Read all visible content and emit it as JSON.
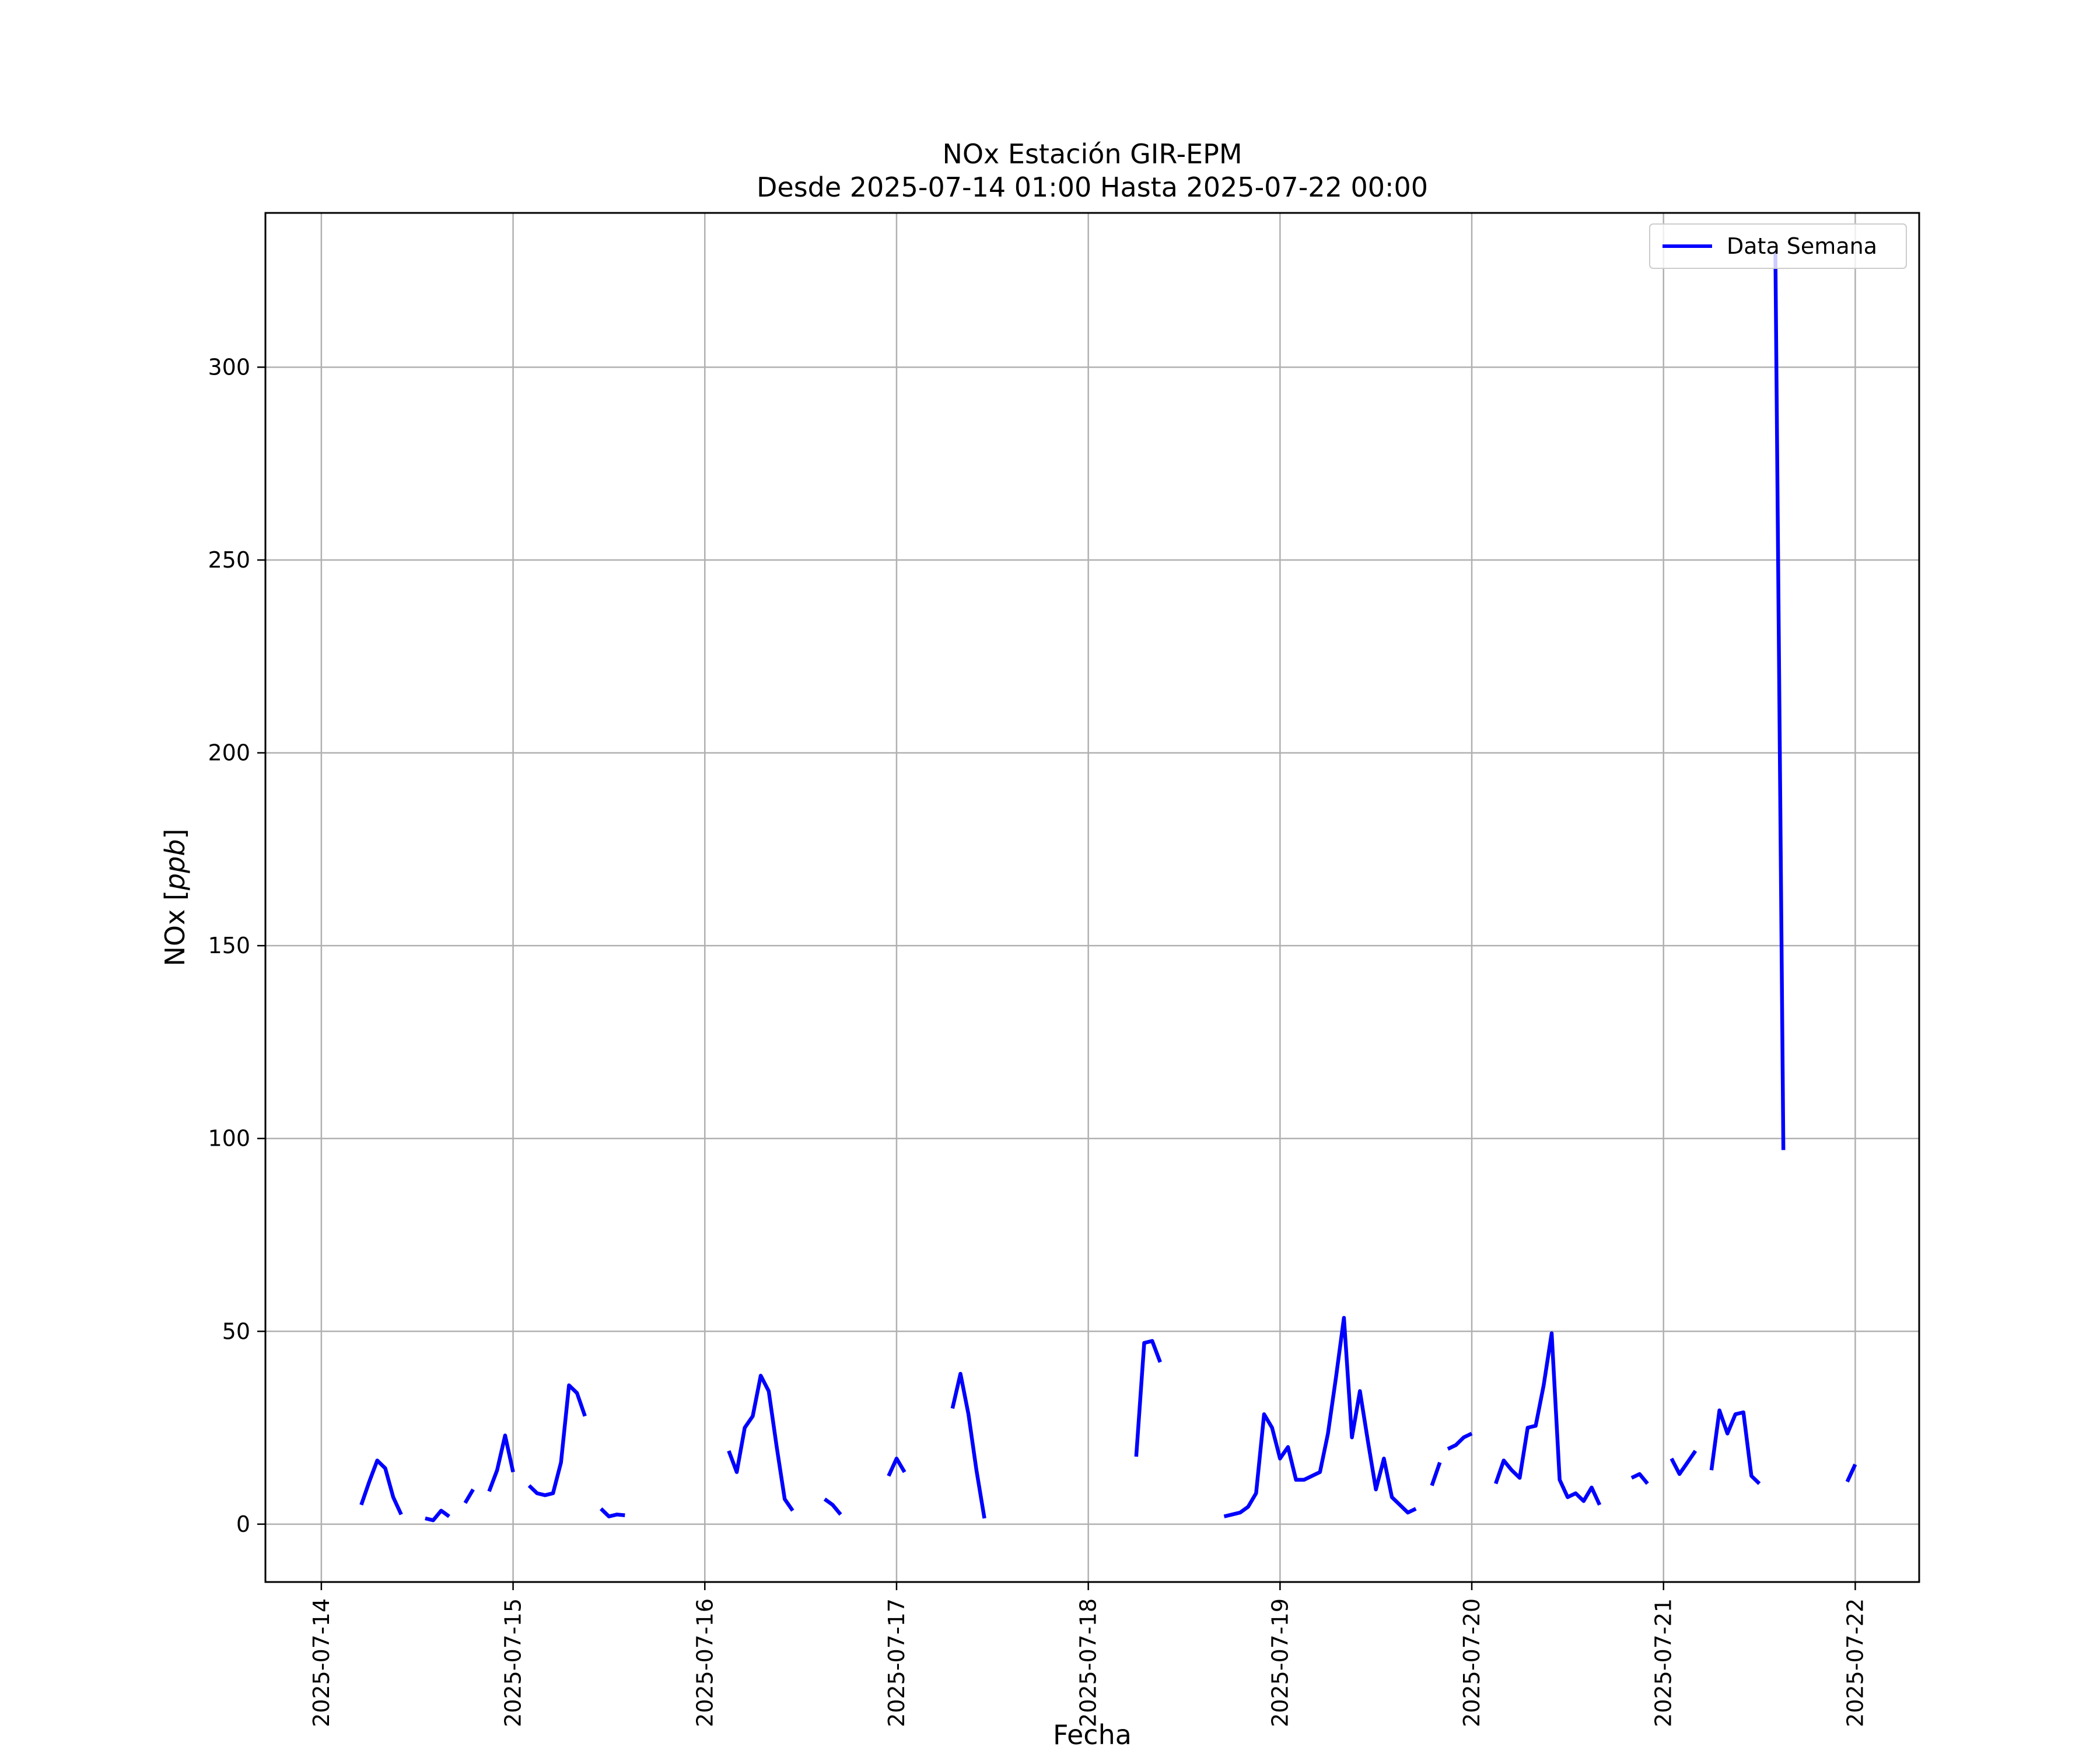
{
  "chart_data": {
    "type": "line",
    "title": "NOx Estación GIR-EPM",
    "subtitle": "Desde 2025-07-14 01:00 Hasta 2025-07-22 00:00",
    "xlabel": "Fecha",
    "ylabel": "NOx [ppb]",
    "ylabel_prefix": "NOx",
    "ylabel_unit": "ppb",
    "xlim": [
      "2025-07-13 17:00",
      "2025-07-22 08:00"
    ],
    "ylim": [
      -15,
      340
    ],
    "x_ticks": [
      "2025-07-14",
      "2025-07-15",
      "2025-07-16",
      "2025-07-17",
      "2025-07-18",
      "2025-07-19",
      "2025-07-20",
      "2025-07-21",
      "2025-07-22"
    ],
    "y_ticks": [
      0,
      50,
      100,
      150,
      200,
      250,
      300
    ],
    "grid": true,
    "legend_position": "top-right",
    "colors": {
      "series": "#0000ff",
      "grid": "#b0b0b0",
      "axes": "#000000"
    },
    "series": [
      {
        "name": "Data Semana",
        "segments": [
          [
            [
              "2025-07-14 05:00",
              5
            ],
            [
              "2025-07-14 06:00",
              11
            ],
            [
              "2025-07-14 07:00",
              16.5
            ],
            [
              "2025-07-14 08:00",
              14.5
            ],
            [
              "2025-07-14 09:00",
              7
            ],
            [
              "2025-07-14 10:00",
              2.5
            ]
          ],
          [
            [
              "2025-07-14 13:00",
              1.5
            ],
            [
              "2025-07-14 14:00",
              1
            ],
            [
              "2025-07-14 15:00",
              3.5
            ],
            [
              "2025-07-14 16:00",
              2
            ]
          ],
          [
            [
              "2025-07-14 18:00",
              5.5
            ],
            [
              "2025-07-14 19:00",
              9
            ]
          ],
          [
            [
              "2025-07-14 21:00",
              8.5
            ],
            [
              "2025-07-14 22:00",
              14
            ],
            [
              "2025-07-14 23:00",
              23
            ],
            [
              "2025-07-15 00:00",
              13.5
            ]
          ],
          [
            [
              "2025-07-15 02:00",
              10
            ],
            [
              "2025-07-15 03:00",
              8
            ],
            [
              "2025-07-15 04:00",
              7.5
            ],
            [
              "2025-07-15 05:00",
              8
            ],
            [
              "2025-07-15 06:00",
              16
            ],
            [
              "2025-07-15 07:00",
              36
            ],
            [
              "2025-07-15 08:00",
              34
            ],
            [
              "2025-07-15 09:00",
              28
            ]
          ],
          [
            [
              "2025-07-15 11:00",
              4
            ],
            [
              "2025-07-15 12:00",
              2
            ],
            [
              "2025-07-15 13:00",
              2.5
            ],
            [
              "2025-07-15 14:00",
              2.3
            ]
          ],
          [
            [
              "2025-07-16 03:00",
              19
            ],
            [
              "2025-07-16 04:00",
              13.5
            ],
            [
              "2025-07-16 05:00",
              25
            ],
            [
              "2025-07-16 06:00",
              28
            ],
            [
              "2025-07-16 07:00",
              38.5
            ],
            [
              "2025-07-16 08:00",
              34.5
            ],
            [
              "2025-07-16 09:00",
              20
            ],
            [
              "2025-07-16 10:00",
              6.5
            ],
            [
              "2025-07-16 11:00",
              3.5
            ]
          ],
          [
            [
              "2025-07-16 15:00",
              6.5
            ],
            [
              "2025-07-16 16:00",
              5
            ],
            [
              "2025-07-16 17:00",
              2.5
            ]
          ],
          [
            [
              "2025-07-16 23:00",
              12.5
            ],
            [
              "2025-07-17 00:00",
              17
            ],
            [
              "2025-07-17 01:00",
              13.5
            ]
          ],
          [
            [
              "2025-07-17 07:00",
              30
            ],
            [
              "2025-07-17 08:00",
              39
            ],
            [
              "2025-07-17 09:00",
              28.5
            ],
            [
              "2025-07-17 10:00",
              14
            ],
            [
              "2025-07-17 11:00",
              1.5
            ]
          ],
          [
            [
              "2025-07-18 06:00",
              17.5
            ],
            [
              "2025-07-18 07:00",
              47
            ],
            [
              "2025-07-18 08:00",
              47.5
            ],
            [
              "2025-07-18 09:00",
              42
            ]
          ],
          [
            [
              "2025-07-18 17:00",
              2
            ],
            [
              "2025-07-18 18:00",
              2.5
            ],
            [
              "2025-07-18 19:00",
              3
            ],
            [
              "2025-07-18 20:00",
              4.5
            ],
            [
              "2025-07-18 21:00",
              8
            ],
            [
              "2025-07-18 22:00",
              28.5
            ],
            [
              "2025-07-18 23:00",
              25
            ],
            [
              "2025-07-19 00:00",
              17
            ],
            [
              "2025-07-19 01:00",
              20
            ],
            [
              "2025-07-19 02:00",
              11.5
            ],
            [
              "2025-07-19 03:00",
              11.5
            ],
            [
              "2025-07-19 04:00",
              12.5
            ],
            [
              "2025-07-19 05:00",
              13.5
            ],
            [
              "2025-07-19 06:00",
              23.5
            ],
            [
              "2025-07-19 07:00",
              38
            ],
            [
              "2025-07-19 08:00",
              53.5
            ],
            [
              "2025-07-19 09:00",
              22.5
            ],
            [
              "2025-07-19 10:00",
              34.5
            ],
            [
              "2025-07-19 11:00",
              21.5
            ],
            [
              "2025-07-19 12:00",
              9
            ],
            [
              "2025-07-19 13:00",
              17
            ],
            [
              "2025-07-19 14:00",
              7
            ],
            [
              "2025-07-19 15:00",
              5
            ],
            [
              "2025-07-19 16:00",
              3
            ],
            [
              "2025-07-19 17:00",
              4
            ]
          ],
          [
            [
              "2025-07-19 19:00",
              10
            ],
            [
              "2025-07-19 20:00",
              16
            ]
          ],
          [
            [
              "2025-07-19 21:00",
              19.5
            ],
            [
              "2025-07-19 22:00",
              20.5
            ],
            [
              "2025-07-19 23:00",
              22.5
            ],
            [
              "2025-07-20 00:00",
              23.5
            ]
          ],
          [
            [
              "2025-07-20 03:00",
              10.5
            ],
            [
              "2025-07-20 04:00",
              16.5
            ],
            [
              "2025-07-20 05:00",
              14
            ],
            [
              "2025-07-20 06:00",
              12
            ],
            [
              "2025-07-20 07:00",
              25
            ],
            [
              "2025-07-20 08:00",
              25.5
            ],
            [
              "2025-07-20 09:00",
              36
            ],
            [
              "2025-07-20 10:00",
              49.5
            ],
            [
              "2025-07-20 11:00",
              11.5
            ],
            [
              "2025-07-20 12:00",
              7
            ],
            [
              "2025-07-20 13:00",
              8
            ],
            [
              "2025-07-20 14:00",
              6
            ],
            [
              "2025-07-20 15:00",
              9.5
            ],
            [
              "2025-07-20 16:00",
              5
            ]
          ],
          [
            [
              "2025-07-20 20:00",
              12
            ],
            [
              "2025-07-20 21:00",
              13
            ],
            [
              "2025-07-20 22:00",
              10.5
            ]
          ],
          [
            [
              "2025-07-21 01:00",
              17
            ],
            [
              "2025-07-21 02:00",
              13
            ],
            [
              "2025-07-21 03:00",
              16
            ],
            [
              "2025-07-21 04:00",
              19
            ]
          ],
          [
            [
              "2025-07-21 06:00",
              14
            ],
            [
              "2025-07-21 07:00",
              29.5
            ],
            [
              "2025-07-21 08:00",
              23.5
            ],
            [
              "2025-07-21 09:00",
              28.5
            ],
            [
              "2025-07-21 10:00",
              29
            ],
            [
              "2025-07-21 11:00",
              12.5
            ],
            [
              "2025-07-21 12:00",
              10.5
            ]
          ],
          [
            [
              "2025-07-21 14:00",
              330
            ],
            [
              "2025-07-21 15:00",
              97
            ]
          ],
          [
            [
              "2025-07-21 23:00",
              11
            ],
            [
              "2025-07-22 00:00",
              15.5
            ]
          ]
        ]
      }
    ]
  }
}
